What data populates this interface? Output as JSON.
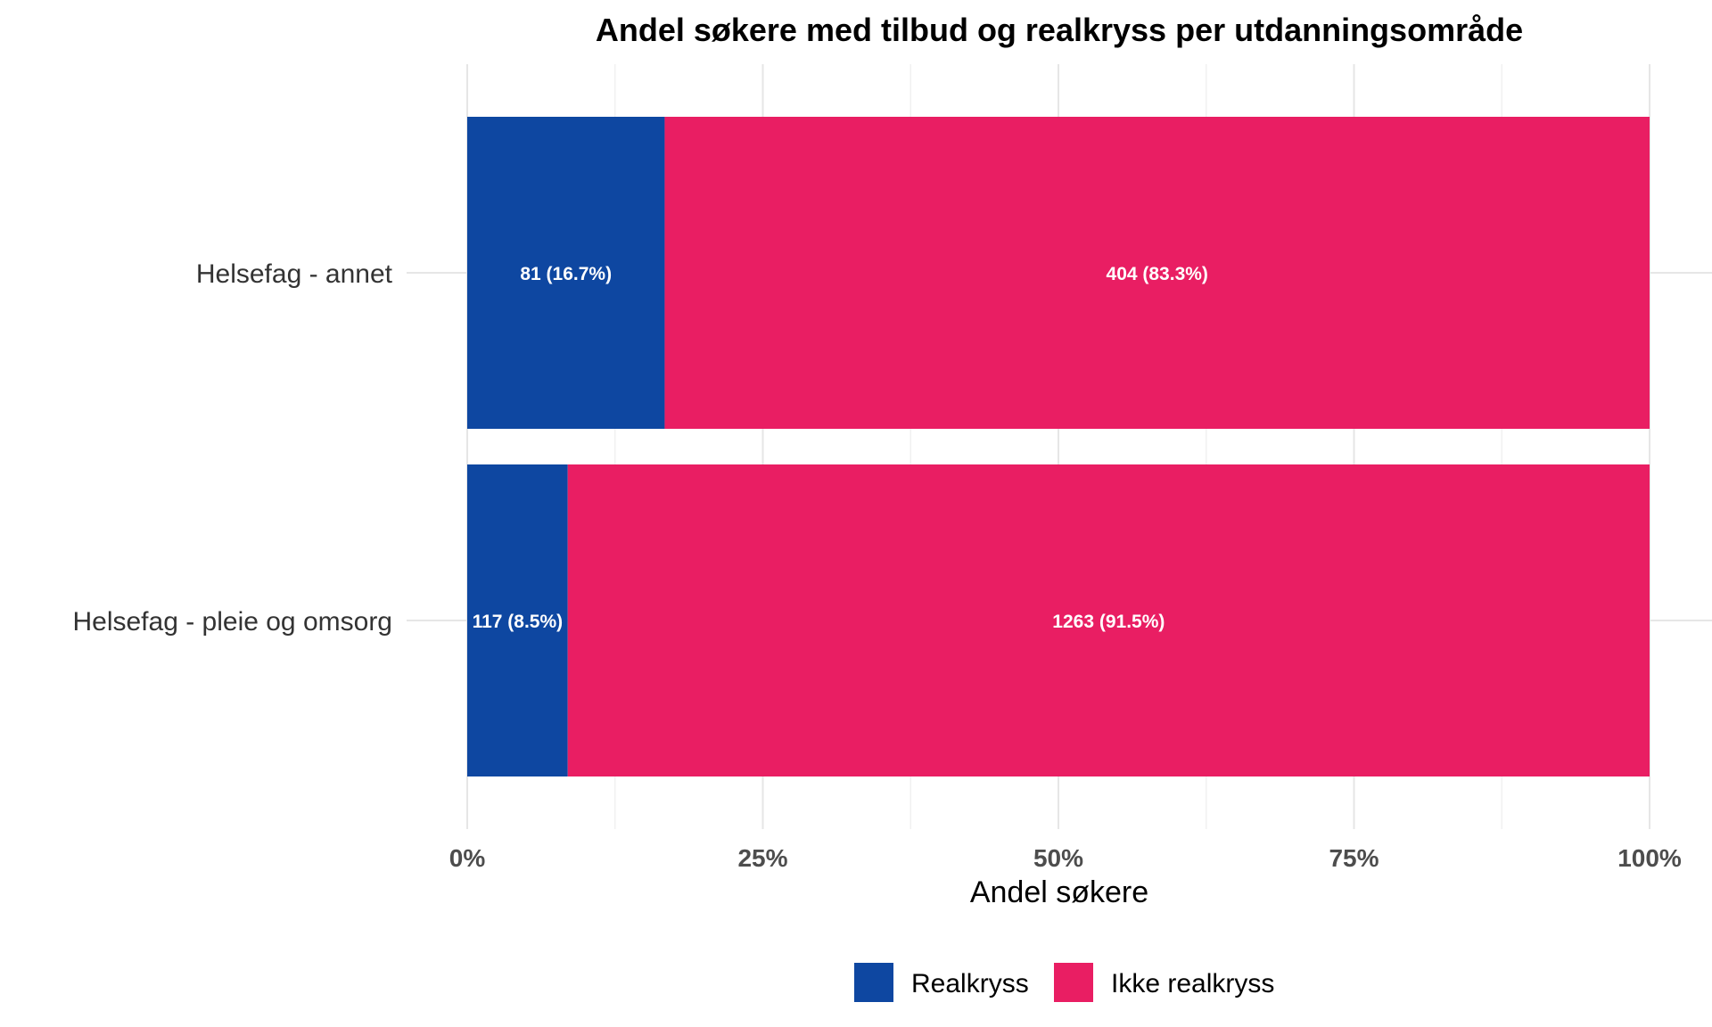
{
  "chart_data": {
    "type": "bar",
    "orientation": "horizontal",
    "stacked": "percent",
    "title": "Andel søkere med tilbud og realkryss per utdanningsområde",
    "xlabel": "Andel søkere",
    "ylabel": "",
    "xlim": [
      0,
      100
    ],
    "x_ticks": [
      "0%",
      "25%",
      "50%",
      "75%",
      "100%"
    ],
    "categories": [
      "Helsefag - annet",
      "Helsefag - pleie og omsorg"
    ],
    "series": [
      {
        "name": "Realkryss",
        "color": "#0e47a1",
        "values": [
          16.7,
          8.5
        ],
        "counts": [
          81,
          117
        ],
        "labels": [
          "81 (16.7%)",
          "117 (8.5%)"
        ]
      },
      {
        "name": "Ikke realkryss",
        "color": "#e91e63",
        "values": [
          83.3,
          91.5
        ],
        "counts": [
          404,
          1263
        ],
        "labels": [
          "404 (83.3%)",
          "1263 (91.5%)"
        ]
      }
    ],
    "legend": {
      "position": "bottom"
    },
    "grid": true
  }
}
